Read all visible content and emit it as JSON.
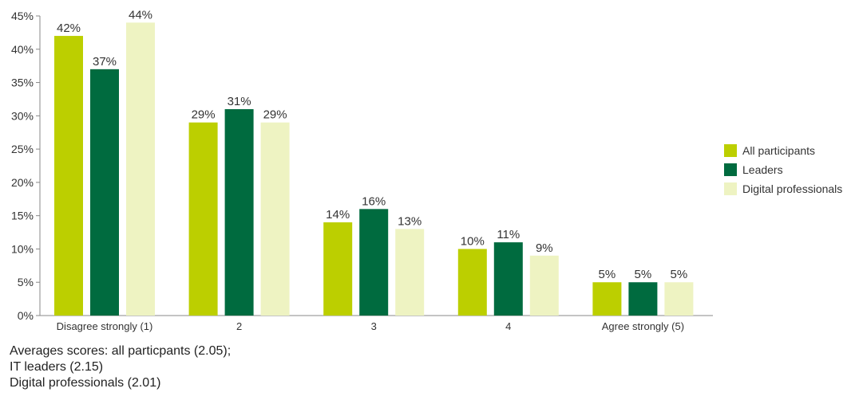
{
  "chart_data": {
    "type": "bar",
    "categories": [
      "Disagree strongly (1)",
      "2",
      "3",
      "4",
      "Agree strongly (5)"
    ],
    "series": [
      {
        "name": "All participants",
        "color": "#bccf00",
        "values": [
          42,
          29,
          14,
          10,
          5
        ]
      },
      {
        "name": "Leaders",
        "color": "#006b3f",
        "values": [
          37,
          31,
          16,
          11,
          5
        ]
      },
      {
        "name": "Digital professionals",
        "color": "#eef3c2",
        "values": [
          44,
          29,
          13,
          9,
          5
        ]
      }
    ],
    "ylim": [
      0,
      45
    ],
    "yticks": [
      0,
      5,
      10,
      15,
      20,
      25,
      30,
      35,
      40,
      45
    ],
    "value_suffix": "%",
    "legend_position": "right",
    "grid": false
  },
  "notes": [
    "Averages scores: all particpants (2.05);",
    "IT leaders (2.15)",
    "Digital professionals (2.01)"
  ]
}
